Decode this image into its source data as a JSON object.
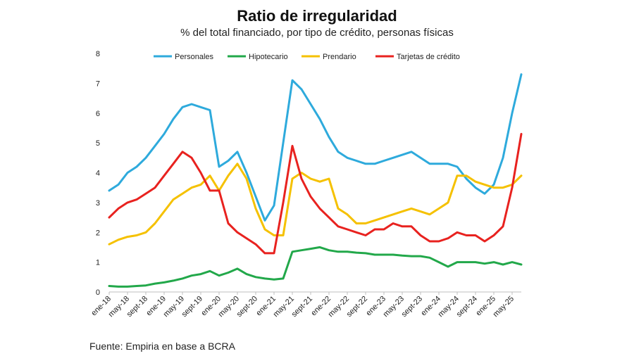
{
  "header": {
    "title": "Ratio de irregularidad",
    "subtitle": "% del total financiado, por tipo de crédito, personas físicas"
  },
  "footer": {
    "source": "Fuente: Empiria en base a BCRA"
  },
  "chart_data": {
    "type": "line",
    "title": "Ratio de irregularidad",
    "subtitle": "% del total financiado, por tipo de crédito, personas físicas",
    "xlabel": "",
    "ylabel": "",
    "ylim": [
      0,
      8
    ],
    "yticks": [
      0,
      1,
      2,
      3,
      4,
      5,
      6,
      7,
      8
    ],
    "grid": false,
    "legend_position": "top",
    "x": [
      "ene-18",
      "mar-18",
      "may-18",
      "jul-18",
      "sept-18",
      "nov-18",
      "ene-19",
      "mar-19",
      "may-19",
      "jul-19",
      "sept-19",
      "nov-19",
      "ene-20",
      "mar-20",
      "may-20",
      "jul-20",
      "sept-20",
      "nov-20",
      "ene-21",
      "mar-21",
      "may-21",
      "jul-21",
      "sept-21",
      "nov-21",
      "ene-22",
      "mar-22",
      "may-22",
      "jul-22",
      "sept-22",
      "nov-22",
      "ene-23",
      "mar-23",
      "may-23",
      "jul-23",
      "sept-23",
      "nov-23",
      "ene-24",
      "mar-24",
      "may-24",
      "jul-24",
      "sept-24",
      "nov-24",
      "ene-25",
      "mar-25",
      "may-25",
      "jul-25"
    ],
    "x_tick_labels": [
      "ene-18",
      "may-18",
      "sept-18",
      "ene-19",
      "may-19",
      "sept-19",
      "ene-20",
      "may-20",
      "sept-20",
      "ene-21",
      "may-21",
      "sept-21",
      "ene-22",
      "may-22",
      "sept-22",
      "ene-23",
      "may-23",
      "sept-23",
      "ene-24",
      "may-24",
      "sept-24",
      "ene-25",
      "may-25"
    ],
    "series": [
      {
        "name": "Personales",
        "color": "#2eaadc",
        "values": [
          3.4,
          3.6,
          4.0,
          4.2,
          4.5,
          4.9,
          5.3,
          5.8,
          6.2,
          6.3,
          6.2,
          6.1,
          4.2,
          4.4,
          4.7,
          4.0,
          3.2,
          2.4,
          2.9,
          5.0,
          7.1,
          6.8,
          6.3,
          5.8,
          5.2,
          4.7,
          4.5,
          4.4,
          4.3,
          4.3,
          4.4,
          4.5,
          4.6,
          4.7,
          4.5,
          4.3,
          4.3,
          4.3,
          4.2,
          3.8,
          3.5,
          3.3,
          3.6,
          4.5,
          6.0,
          7.3
        ]
      },
      {
        "name": "Hipotecario",
        "color": "#22a84a",
        "values": [
          0.2,
          0.18,
          0.18,
          0.2,
          0.22,
          0.28,
          0.32,
          0.38,
          0.45,
          0.55,
          0.6,
          0.7,
          0.55,
          0.65,
          0.78,
          0.6,
          0.5,
          0.45,
          0.42,
          0.45,
          1.35,
          1.4,
          1.45,
          1.5,
          1.4,
          1.35,
          1.35,
          1.32,
          1.3,
          1.25,
          1.25,
          1.25,
          1.22,
          1.2,
          1.2,
          1.15,
          1.0,
          0.85,
          1.0,
          1.0,
          1.0,
          0.95,
          1.0,
          0.92,
          1.0,
          0.92
        ]
      },
      {
        "name": "Prendario",
        "color": "#f5c100",
        "values": [
          1.6,
          1.75,
          1.85,
          1.9,
          2.0,
          2.3,
          2.7,
          3.1,
          3.3,
          3.5,
          3.6,
          3.9,
          3.4,
          3.9,
          4.3,
          3.8,
          2.8,
          2.1,
          1.9,
          1.9,
          3.8,
          4.0,
          3.8,
          3.7,
          3.8,
          2.8,
          2.6,
          2.3,
          2.3,
          2.4,
          2.5,
          2.6,
          2.7,
          2.8,
          2.7,
          2.6,
          2.8,
          3.0,
          3.9,
          3.9,
          3.7,
          3.6,
          3.5,
          3.5,
          3.6,
          3.9
        ]
      },
      {
        "name": "Tarjetas de crédito",
        "color": "#e8221f",
        "values": [
          2.5,
          2.8,
          3.0,
          3.1,
          3.3,
          3.5,
          3.9,
          4.3,
          4.7,
          4.5,
          4.0,
          3.4,
          3.4,
          2.3,
          2.0,
          1.8,
          1.6,
          1.3,
          1.3,
          3.0,
          4.9,
          3.8,
          3.2,
          2.8,
          2.5,
          2.2,
          2.1,
          2.0,
          1.9,
          2.1,
          2.1,
          2.3,
          2.2,
          2.2,
          1.9,
          1.7,
          1.7,
          1.8,
          2.0,
          1.9,
          1.9,
          1.7,
          1.9,
          2.2,
          3.5,
          5.3
        ]
      }
    ]
  }
}
